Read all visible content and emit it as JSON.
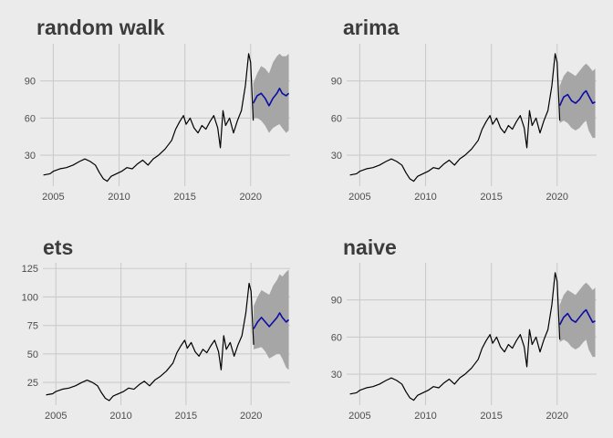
{
  "colors": {
    "background": "#ebebeb",
    "grid": "#cbcbcb",
    "history": "#000000",
    "forecast": "#0b0ba5",
    "interval": "#a6a6a6"
  },
  "chart_data": [
    {
      "type": "line",
      "title": "random walk",
      "x_ticks": [
        "2005",
        "2010",
        "2015",
        "2020"
      ],
      "y_ticks": [
        "30",
        "60",
        "90"
      ],
      "xlim": [
        2004.0,
        2023.0
      ],
      "ylim": [
        5,
        120
      ],
      "history": [
        [
          2004.25,
          14
        ],
        [
          2004.75,
          15
        ],
        [
          2005.0,
          17
        ],
        [
          2005.5,
          19
        ],
        [
          2006.0,
          20
        ],
        [
          2006.5,
          22
        ],
        [
          2007.0,
          25
        ],
        [
          2007.4,
          27
        ],
        [
          2007.8,
          25
        ],
        [
          2008.2,
          22
        ],
        [
          2008.5,
          16
        ],
        [
          2008.8,
          11
        ],
        [
          2009.1,
          9
        ],
        [
          2009.4,
          13
        ],
        [
          2009.8,
          15
        ],
        [
          2010.2,
          17
        ],
        [
          2010.6,
          20
        ],
        [
          2011.0,
          19
        ],
        [
          2011.4,
          23
        ],
        [
          2011.8,
          26
        ],
        [
          2012.2,
          22
        ],
        [
          2012.6,
          27
        ],
        [
          2013.0,
          30
        ],
        [
          2013.5,
          35
        ],
        [
          2014.0,
          42
        ],
        [
          2014.3,
          51
        ],
        [
          2014.6,
          57
        ],
        [
          2014.9,
          62
        ],
        [
          2015.1,
          55
        ],
        [
          2015.4,
          60
        ],
        [
          2015.7,
          52
        ],
        [
          2016.0,
          48
        ],
        [
          2016.3,
          54
        ],
        [
          2016.6,
          51
        ],
        [
          2016.9,
          57
        ],
        [
          2017.2,
          62
        ],
        [
          2017.5,
          52
        ],
        [
          2017.7,
          36
        ],
        [
          2017.9,
          66
        ],
        [
          2018.1,
          54
        ],
        [
          2018.4,
          60
        ],
        [
          2018.7,
          48
        ],
        [
          2019.0,
          58
        ],
        [
          2019.3,
          66
        ],
        [
          2019.6,
          86
        ],
        [
          2019.85,
          112
        ],
        [
          2020.0,
          105
        ],
        [
          2020.2,
          58
        ]
      ],
      "forecast": [
        [
          2020.2,
          72
        ],
        [
          2020.5,
          78
        ],
        [
          2020.8,
          80
        ],
        [
          2021.1,
          76
        ],
        [
          2021.4,
          70
        ],
        [
          2021.7,
          76
        ],
        [
          2022.0,
          80
        ],
        [
          2022.2,
          84
        ],
        [
          2022.4,
          80
        ],
        [
          2022.7,
          78
        ],
        [
          2022.9,
          80
        ]
      ],
      "interval_upper": [
        [
          2020.2,
          88
        ],
        [
          2020.5,
          96
        ],
        [
          2020.8,
          102
        ],
        [
          2021.1,
          100
        ],
        [
          2021.4,
          96
        ],
        [
          2021.7,
          105
        ],
        [
          2022.0,
          110
        ],
        [
          2022.2,
          112
        ],
        [
          2022.4,
          110
        ],
        [
          2022.7,
          110
        ],
        [
          2022.9,
          112
        ]
      ],
      "interval_lower": [
        [
          2020.2,
          60
        ],
        [
          2020.5,
          60
        ],
        [
          2020.8,
          58
        ],
        [
          2021.1,
          54
        ],
        [
          2021.4,
          48
        ],
        [
          2021.7,
          52
        ],
        [
          2022.0,
          54
        ],
        [
          2022.2,
          55
        ],
        [
          2022.4,
          52
        ],
        [
          2022.7,
          48
        ],
        [
          2022.9,
          50
        ]
      ]
    },
    {
      "type": "line",
      "title": "arima",
      "x_ticks": [
        "2005",
        "2010",
        "2015",
        "2020"
      ],
      "y_ticks": [
        "30",
        "60",
        "90"
      ],
      "xlim": [
        2004.0,
        2023.0
      ],
      "ylim": [
        5,
        120
      ],
      "history": [
        [
          2004.25,
          14
        ],
        [
          2004.75,
          15
        ],
        [
          2005.0,
          17
        ],
        [
          2005.5,
          19
        ],
        [
          2006.0,
          20
        ],
        [
          2006.5,
          22
        ],
        [
          2007.0,
          25
        ],
        [
          2007.4,
          27
        ],
        [
          2007.8,
          25
        ],
        [
          2008.2,
          22
        ],
        [
          2008.5,
          16
        ],
        [
          2008.8,
          11
        ],
        [
          2009.1,
          9
        ],
        [
          2009.4,
          13
        ],
        [
          2009.8,
          15
        ],
        [
          2010.2,
          17
        ],
        [
          2010.6,
          20
        ],
        [
          2011.0,
          19
        ],
        [
          2011.4,
          23
        ],
        [
          2011.8,
          26
        ],
        [
          2012.2,
          22
        ],
        [
          2012.6,
          27
        ],
        [
          2013.0,
          30
        ],
        [
          2013.5,
          35
        ],
        [
          2014.0,
          42
        ],
        [
          2014.3,
          51
        ],
        [
          2014.6,
          57
        ],
        [
          2014.9,
          62
        ],
        [
          2015.1,
          55
        ],
        [
          2015.4,
          60
        ],
        [
          2015.7,
          52
        ],
        [
          2016.0,
          48
        ],
        [
          2016.3,
          54
        ],
        [
          2016.6,
          51
        ],
        [
          2016.9,
          57
        ],
        [
          2017.2,
          62
        ],
        [
          2017.5,
          52
        ],
        [
          2017.7,
          36
        ],
        [
          2017.9,
          66
        ],
        [
          2018.1,
          54
        ],
        [
          2018.4,
          60
        ],
        [
          2018.7,
          48
        ],
        [
          2019.0,
          58
        ],
        [
          2019.3,
          66
        ],
        [
          2019.6,
          86
        ],
        [
          2019.85,
          112
        ],
        [
          2020.0,
          105
        ],
        [
          2020.2,
          58
        ]
      ],
      "forecast": [
        [
          2020.2,
          70
        ],
        [
          2020.5,
          77
        ],
        [
          2020.8,
          79
        ],
        [
          2021.1,
          74
        ],
        [
          2021.4,
          72
        ],
        [
          2021.7,
          75
        ],
        [
          2022.0,
          80
        ],
        [
          2022.2,
          82
        ],
        [
          2022.4,
          78
        ],
        [
          2022.7,
          72
        ],
        [
          2022.9,
          73
        ]
      ],
      "interval_upper": [
        [
          2020.2,
          86
        ],
        [
          2020.5,
          94
        ],
        [
          2020.8,
          98
        ],
        [
          2021.1,
          96
        ],
        [
          2021.4,
          94
        ],
        [
          2021.7,
          98
        ],
        [
          2022.0,
          102
        ],
        [
          2022.2,
          104
        ],
        [
          2022.4,
          102
        ],
        [
          2022.7,
          98
        ],
        [
          2022.9,
          100
        ]
      ],
      "interval_lower": [
        [
          2020.2,
          56
        ],
        [
          2020.5,
          58
        ],
        [
          2020.8,
          56
        ],
        [
          2021.1,
          52
        ],
        [
          2021.4,
          50
        ],
        [
          2021.7,
          52
        ],
        [
          2022.0,
          56
        ],
        [
          2022.2,
          58
        ],
        [
          2022.4,
          50
        ],
        [
          2022.7,
          44
        ],
        [
          2022.9,
          44
        ]
      ]
    },
    {
      "type": "line",
      "title": "ets",
      "x_ticks": [
        "2005",
        "2010",
        "2015",
        "2020"
      ],
      "y_ticks": [
        "25",
        "50",
        "75",
        "100",
        "125"
      ],
      "xlim": [
        2004.0,
        2023.0
      ],
      "ylim": [
        5,
        130
      ],
      "history": [
        [
          2004.25,
          14
        ],
        [
          2004.75,
          15
        ],
        [
          2005.0,
          17
        ],
        [
          2005.5,
          19
        ],
        [
          2006.0,
          20
        ],
        [
          2006.5,
          22
        ],
        [
          2007.0,
          25
        ],
        [
          2007.4,
          27
        ],
        [
          2007.8,
          25
        ],
        [
          2008.2,
          22
        ],
        [
          2008.5,
          16
        ],
        [
          2008.8,
          11
        ],
        [
          2009.1,
          9
        ],
        [
          2009.4,
          13
        ],
        [
          2009.8,
          15
        ],
        [
          2010.2,
          17
        ],
        [
          2010.6,
          20
        ],
        [
          2011.0,
          19
        ],
        [
          2011.4,
          23
        ],
        [
          2011.8,
          26
        ],
        [
          2012.2,
          22
        ],
        [
          2012.6,
          27
        ],
        [
          2013.0,
          30
        ],
        [
          2013.5,
          35
        ],
        [
          2014.0,
          42
        ],
        [
          2014.3,
          51
        ],
        [
          2014.6,
          57
        ],
        [
          2014.9,
          62
        ],
        [
          2015.1,
          55
        ],
        [
          2015.4,
          60
        ],
        [
          2015.7,
          52
        ],
        [
          2016.0,
          48
        ],
        [
          2016.3,
          54
        ],
        [
          2016.6,
          51
        ],
        [
          2016.9,
          57
        ],
        [
          2017.2,
          62
        ],
        [
          2017.5,
          52
        ],
        [
          2017.7,
          36
        ],
        [
          2017.9,
          66
        ],
        [
          2018.1,
          54
        ],
        [
          2018.4,
          60
        ],
        [
          2018.7,
          48
        ],
        [
          2019.0,
          58
        ],
        [
          2019.3,
          66
        ],
        [
          2019.6,
          86
        ],
        [
          2019.85,
          112
        ],
        [
          2020.0,
          105
        ],
        [
          2020.2,
          58
        ]
      ],
      "forecast": [
        [
          2020.2,
          72
        ],
        [
          2020.5,
          78
        ],
        [
          2020.8,
          82
        ],
        [
          2021.1,
          78
        ],
        [
          2021.4,
          74
        ],
        [
          2021.7,
          78
        ],
        [
          2022.0,
          82
        ],
        [
          2022.2,
          86
        ],
        [
          2022.4,
          82
        ],
        [
          2022.7,
          78
        ],
        [
          2022.9,
          80
        ]
      ],
      "interval_upper": [
        [
          2020.2,
          92
        ],
        [
          2020.5,
          100
        ],
        [
          2020.8,
          106
        ],
        [
          2021.1,
          104
        ],
        [
          2021.4,
          102
        ],
        [
          2021.7,
          110
        ],
        [
          2022.0,
          115
        ],
        [
          2022.2,
          120
        ],
        [
          2022.4,
          118
        ],
        [
          2022.7,
          122
        ],
        [
          2022.9,
          124
        ]
      ],
      "interval_lower": [
        [
          2020.2,
          54
        ],
        [
          2020.5,
          55
        ],
        [
          2020.8,
          56
        ],
        [
          2021.1,
          52
        ],
        [
          2021.4,
          46
        ],
        [
          2021.7,
          48
        ],
        [
          2022.0,
          50
        ],
        [
          2022.2,
          50
        ],
        [
          2022.4,
          46
        ],
        [
          2022.7,
          38
        ],
        [
          2022.9,
          36
        ]
      ]
    },
    {
      "type": "line",
      "title": "naive",
      "x_ticks": [
        "2005",
        "2010",
        "2015",
        "2020"
      ],
      "y_ticks": [
        "30",
        "60",
        "90"
      ],
      "xlim": [
        2004.0,
        2023.0
      ],
      "ylim": [
        5,
        120
      ],
      "history": [
        [
          2004.25,
          14
        ],
        [
          2004.75,
          15
        ],
        [
          2005.0,
          17
        ],
        [
          2005.5,
          19
        ],
        [
          2006.0,
          20
        ],
        [
          2006.5,
          22
        ],
        [
          2007.0,
          25
        ],
        [
          2007.4,
          27
        ],
        [
          2007.8,
          25
        ],
        [
          2008.2,
          22
        ],
        [
          2008.5,
          16
        ],
        [
          2008.8,
          11
        ],
        [
          2009.1,
          9
        ],
        [
          2009.4,
          13
        ],
        [
          2009.8,
          15
        ],
        [
          2010.2,
          17
        ],
        [
          2010.6,
          20
        ],
        [
          2011.0,
          19
        ],
        [
          2011.4,
          23
        ],
        [
          2011.8,
          26
        ],
        [
          2012.2,
          22
        ],
        [
          2012.6,
          27
        ],
        [
          2013.0,
          30
        ],
        [
          2013.5,
          35
        ],
        [
          2014.0,
          42
        ],
        [
          2014.3,
          51
        ],
        [
          2014.6,
          57
        ],
        [
          2014.9,
          62
        ],
        [
          2015.1,
          55
        ],
        [
          2015.4,
          60
        ],
        [
          2015.7,
          52
        ],
        [
          2016.0,
          48
        ],
        [
          2016.3,
          54
        ],
        [
          2016.6,
          51
        ],
        [
          2016.9,
          57
        ],
        [
          2017.2,
          62
        ],
        [
          2017.5,
          52
        ],
        [
          2017.7,
          36
        ],
        [
          2017.9,
          66
        ],
        [
          2018.1,
          54
        ],
        [
          2018.4,
          60
        ],
        [
          2018.7,
          48
        ],
        [
          2019.0,
          58
        ],
        [
          2019.3,
          66
        ],
        [
          2019.6,
          86
        ],
        [
          2019.85,
          112
        ],
        [
          2020.0,
          105
        ],
        [
          2020.2,
          58
        ]
      ],
      "forecast": [
        [
          2020.2,
          70
        ],
        [
          2020.5,
          76
        ],
        [
          2020.8,
          79
        ],
        [
          2021.1,
          74
        ],
        [
          2021.4,
          72
        ],
        [
          2021.7,
          76
        ],
        [
          2022.0,
          80
        ],
        [
          2022.2,
          82
        ],
        [
          2022.4,
          78
        ],
        [
          2022.7,
          72
        ],
        [
          2022.9,
          73
        ]
      ],
      "interval_upper": [
        [
          2020.2,
          86
        ],
        [
          2020.5,
          94
        ],
        [
          2020.8,
          98
        ],
        [
          2021.1,
          96
        ],
        [
          2021.4,
          94
        ],
        [
          2021.7,
          98
        ],
        [
          2022.0,
          102
        ],
        [
          2022.2,
          104
        ],
        [
          2022.4,
          102
        ],
        [
          2022.7,
          98
        ],
        [
          2022.9,
          100
        ]
      ],
      "interval_lower": [
        [
          2020.2,
          56
        ],
        [
          2020.5,
          58
        ],
        [
          2020.8,
          56
        ],
        [
          2021.1,
          52
        ],
        [
          2021.4,
          50
        ],
        [
          2021.7,
          52
        ],
        [
          2022.0,
          56
        ],
        [
          2022.2,
          58
        ],
        [
          2022.4,
          50
        ],
        [
          2022.7,
          44
        ],
        [
          2022.9,
          44
        ]
      ]
    }
  ]
}
